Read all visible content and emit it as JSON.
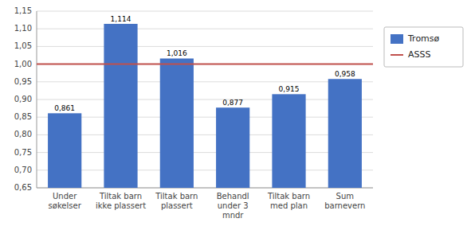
{
  "chart_data": {
    "type": "bar",
    "categories": [
      "Under\nsøkelser",
      "Tiltak barn\nikke plassert",
      "Tiltak barn\nplassert",
      "Behandl\nunder 3\nmndr",
      "Tiltak barn\nmed plan",
      "Sum\nbarnevern"
    ],
    "series": [
      {
        "name": "Tromsø",
        "color": "#4472C4",
        "values": [
          0.861,
          1.114,
          1.016,
          0.877,
          0.915,
          0.958
        ],
        "value_labels": [
          "0,861",
          "1,114",
          "1,016",
          "0,877",
          "0,915",
          "0,958"
        ]
      }
    ],
    "reference_line": {
      "name": "ASSS",
      "value": 1.0,
      "color": "#C0504D"
    },
    "ylim": [
      0.65,
      1.15
    ],
    "yticks": [
      {
        "value": 0.65,
        "label": "0,65"
      },
      {
        "value": 0.7,
        "label": "0,70"
      },
      {
        "value": 0.75,
        "label": "0,75"
      },
      {
        "value": 0.8,
        "label": "0,80"
      },
      {
        "value": 0.85,
        "label": "0,85"
      },
      {
        "value": 0.9,
        "label": "0,90"
      },
      {
        "value": 0.95,
        "label": "0,95"
      },
      {
        "value": 1.0,
        "label": "1,00"
      },
      {
        "value": 1.05,
        "label": "1,05"
      },
      {
        "value": 1.1,
        "label": "1,10"
      },
      {
        "value": 1.15,
        "label": "1,15"
      }
    ],
    "grid": true,
    "data_labels": true,
    "legend": "right"
  }
}
